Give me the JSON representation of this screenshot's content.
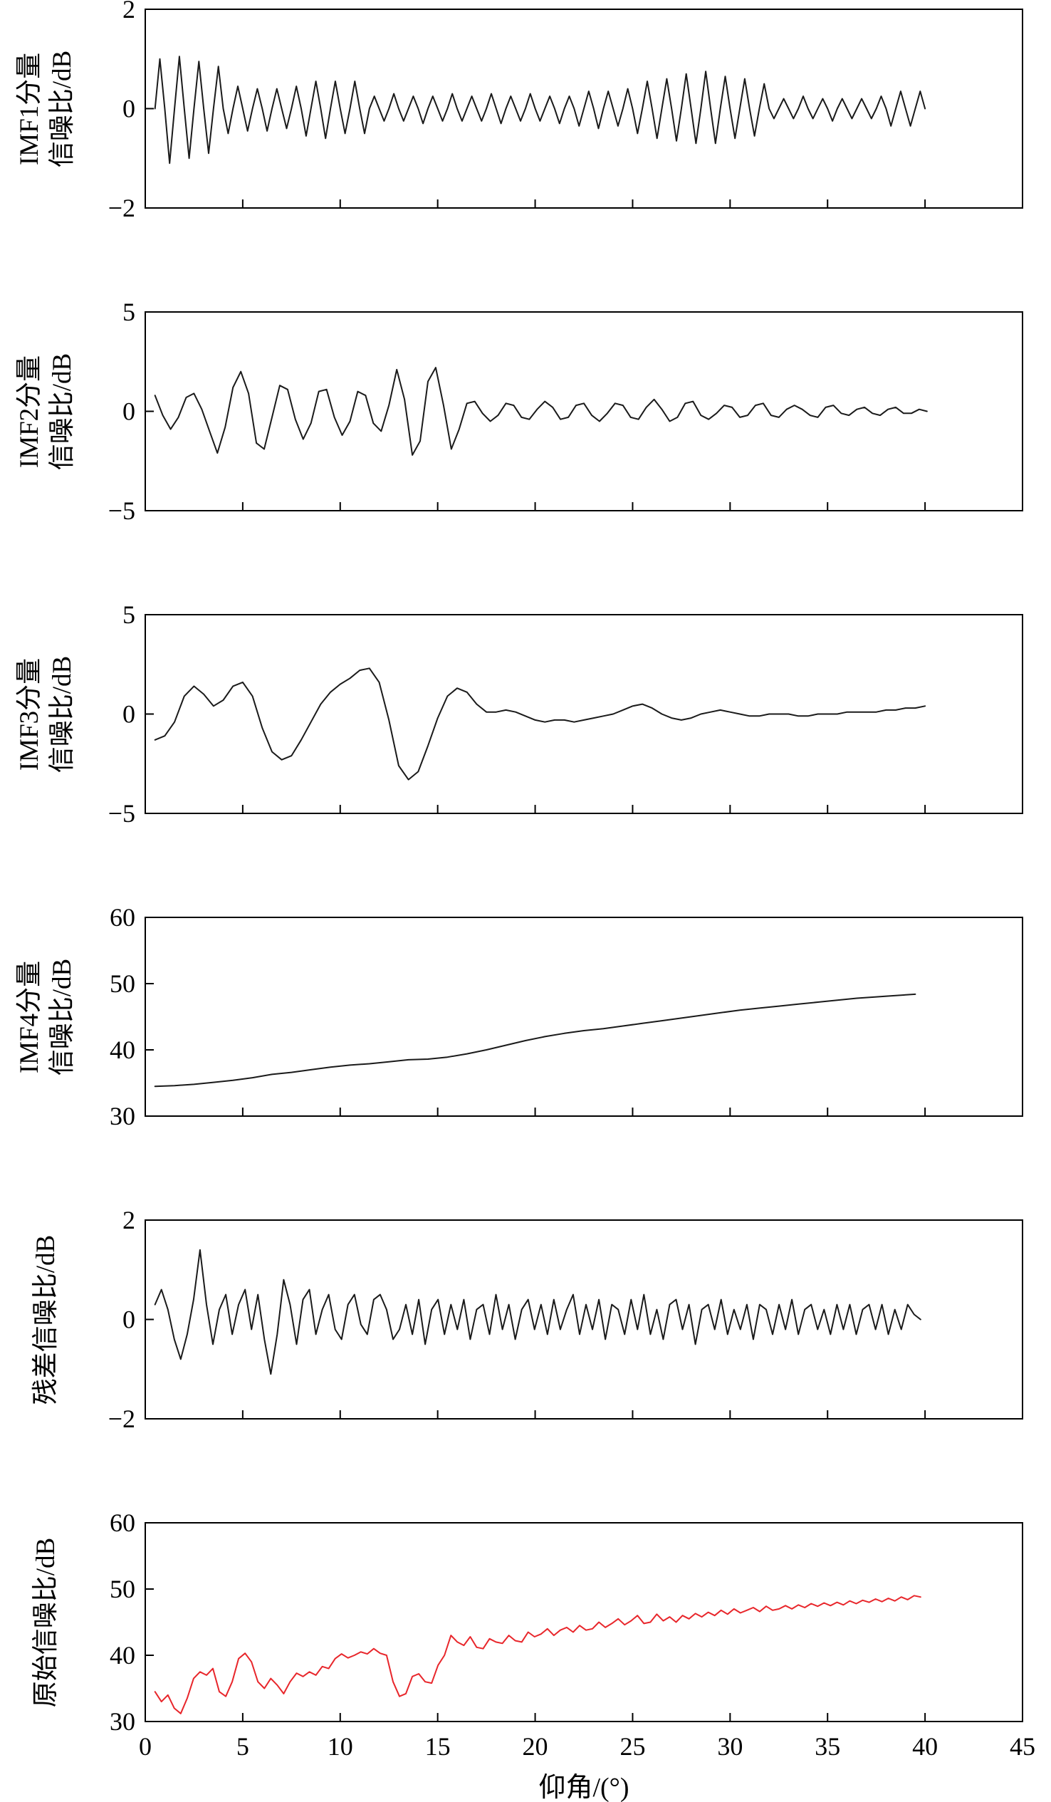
{
  "xlabel": "仰角/(°)",
  "x_ticks": [
    0,
    5,
    10,
    15,
    20,
    25,
    30,
    35,
    40,
    45
  ],
  "colors": {
    "axis": "#000000",
    "black_series": "#1a1a1a",
    "red_series": "#e8262b"
  },
  "chart_data": [
    {
      "type": "line",
      "id": "imf1",
      "ylabel_lines": [
        "IMF1分量",
        "信噪比/dB"
      ],
      "xlim": [
        0,
        45
      ],
      "ylim": [
        -2,
        2
      ],
      "yticks": [
        -2,
        0,
        2
      ],
      "color": "#1a1a1a",
      "x_start": 0.5,
      "x_step": 0.25,
      "values": [
        0,
        1.0,
        0,
        -1.1,
        0,
        1.05,
        0,
        -1.0,
        0,
        0.95,
        0,
        -0.9,
        0,
        0.85,
        0,
        -0.5,
        0,
        0.45,
        0,
        -0.45,
        0,
        0.4,
        0,
        -0.45,
        0,
        0.4,
        0,
        -0.4,
        0,
        0.45,
        0,
        -0.55,
        0,
        0.55,
        0,
        -0.6,
        0,
        0.55,
        0,
        -0.5,
        0,
        0.55,
        0,
        -0.5,
        0,
        0.25,
        0,
        -0.25,
        0,
        0.3,
        0,
        -0.25,
        0,
        0.25,
        0,
        -0.3,
        0,
        0.25,
        0,
        -0.25,
        0,
        0.3,
        0,
        -0.25,
        0,
        0.25,
        0,
        -0.25,
        0,
        0.3,
        0,
        -0.3,
        0,
        0.25,
        0,
        -0.25,
        0,
        0.3,
        0,
        -0.25,
        0,
        0.25,
        0,
        -0.3,
        0,
        0.25,
        0,
        -0.35,
        0,
        0.35,
        0,
        -0.4,
        0,
        0.35,
        0,
        -0.35,
        0,
        0.4,
        0,
        -0.5,
        0,
        0.55,
        0,
        -0.6,
        0,
        0.6,
        0,
        -0.65,
        0,
        0.7,
        0,
        -0.7,
        0,
        0.75,
        0,
        -0.7,
        0,
        0.65,
        0,
        -0.6,
        0,
        0.6,
        0,
        -0.55,
        0,
        0.5,
        0,
        -0.2,
        0,
        0.2,
        0,
        -0.2,
        0,
        0.25,
        0,
        -0.2,
        0,
        0.2,
        0,
        -0.25,
        0,
        0.2,
        0,
        -0.2,
        0,
        0.2,
        0,
        -0.2,
        0,
        0.25,
        0,
        -0.35,
        0,
        0.35,
        0,
        -0.35,
        0,
        0.35,
        0
      ]
    },
    {
      "type": "line",
      "id": "imf2",
      "ylabel_lines": [
        "IMF2分量",
        "信噪比/dB"
      ],
      "xlim": [
        0,
        45
      ],
      "ylim": [
        -5,
        5
      ],
      "yticks": [
        -5,
        0,
        5
      ],
      "color": "#1a1a1a",
      "x_start": 0.5,
      "x_step": 0.4,
      "values": [
        0.8,
        -0.2,
        -0.9,
        -0.3,
        0.7,
        0.9,
        0.1,
        -1.0,
        -2.1,
        -0.8,
        1.2,
        2.0,
        0.9,
        -1.6,
        -1.9,
        -0.3,
        1.3,
        1.1,
        -0.4,
        -1.4,
        -0.6,
        1.0,
        1.1,
        -0.3,
        -1.2,
        -0.5,
        1.0,
        0.8,
        -0.6,
        -1.0,
        0.3,
        2.1,
        0.6,
        -2.2,
        -1.5,
        1.5,
        2.2,
        0.3,
        -1.9,
        -0.9,
        0.4,
        0.5,
        -0.1,
        -0.5,
        -0.2,
        0.4,
        0.3,
        -0.3,
        -0.4,
        0.1,
        0.5,
        0.2,
        -0.4,
        -0.3,
        0.3,
        0.4,
        -0.2,
        -0.5,
        -0.1,
        0.4,
        0.3,
        -0.3,
        -0.4,
        0.2,
        0.6,
        0.1,
        -0.5,
        -0.3,
        0.4,
        0.5,
        -0.2,
        -0.4,
        -0.1,
        0.3,
        0.2,
        -0.3,
        -0.2,
        0.3,
        0.4,
        -0.2,
        -0.3,
        0.1,
        0.3,
        0.1,
        -0.2,
        -0.3,
        0.2,
        0.3,
        -0.1,
        -0.2,
        0.1,
        0.2,
        -0.1,
        -0.2,
        0.1,
        0.2,
        -0.1,
        -0.1,
        0.1,
        0.0
      ]
    },
    {
      "type": "line",
      "id": "imf3",
      "ylabel_lines": [
        "IMF3分量",
        "信噪比/dB"
      ],
      "xlim": [
        0,
        45
      ],
      "ylim": [
        -5,
        5
      ],
      "yticks": [
        -5,
        0,
        5
      ],
      "color": "#1a1a1a",
      "x_start": 0.5,
      "x_step": 0.5,
      "values": [
        -1.3,
        -1.1,
        -0.4,
        0.9,
        1.4,
        1.0,
        0.4,
        0.7,
        1.4,
        1.6,
        0.9,
        -0.7,
        -1.9,
        -2.3,
        -2.1,
        -1.3,
        -0.4,
        0.5,
        1.1,
        1.5,
        1.8,
        2.2,
        2.3,
        1.6,
        -0.3,
        -2.6,
        -3.3,
        -2.9,
        -1.6,
        -0.2,
        0.9,
        1.3,
        1.1,
        0.5,
        0.1,
        0.1,
        0.2,
        0.1,
        -0.1,
        -0.3,
        -0.4,
        -0.3,
        -0.3,
        -0.4,
        -0.3,
        -0.2,
        -0.1,
        0.0,
        0.2,
        0.4,
        0.5,
        0.3,
        0.0,
        -0.2,
        -0.3,
        -0.2,
        0.0,
        0.1,
        0.2,
        0.1,
        0.0,
        -0.1,
        -0.1,
        0.0,
        0.0,
        0.0,
        -0.1,
        -0.1,
        0.0,
        0.0,
        0.0,
        0.1,
        0.1,
        0.1,
        0.1,
        0.2,
        0.2,
        0.3,
        0.3,
        0.4
      ]
    },
    {
      "type": "line",
      "id": "imf4",
      "ylabel_lines": [
        "IMF4分量",
        "信噪比/dB"
      ],
      "xlim": [
        0,
        45
      ],
      "ylim": [
        30,
        60
      ],
      "yticks": [
        30,
        40,
        50,
        60
      ],
      "color": "#1a1a1a",
      "x_start": 0.5,
      "x_step": 1.0,
      "values": [
        34.5,
        34.6,
        34.8,
        35.1,
        35.4,
        35.8,
        36.3,
        36.6,
        37.0,
        37.4,
        37.7,
        37.9,
        38.2,
        38.5,
        38.6,
        38.9,
        39.4,
        40.0,
        40.7,
        41.4,
        42.0,
        42.5,
        42.9,
        43.2,
        43.6,
        44.0,
        44.4,
        44.8,
        45.2,
        45.6,
        46.0,
        46.3,
        46.6,
        46.9,
        47.2,
        47.5,
        47.8,
        48.0,
        48.2,
        48.4
      ]
    },
    {
      "type": "line",
      "id": "residual",
      "ylabel_lines": [
        "残差信噪比/dB"
      ],
      "xlim": [
        0,
        45
      ],
      "ylim": [
        -2,
        2
      ],
      "yticks": [
        -2,
        0,
        2
      ],
      "color": "#1a1a1a",
      "x_start": 0.5,
      "x_step": 0.33,
      "values": [
        0.3,
        0.6,
        0.2,
        -0.4,
        -0.8,
        -0.3,
        0.4,
        1.4,
        0.3,
        -0.5,
        0.2,
        0.5,
        -0.3,
        0.3,
        0.6,
        -0.2,
        0.5,
        -0.4,
        -1.1,
        -0.3,
        0.8,
        0.3,
        -0.5,
        0.4,
        0.6,
        -0.3,
        0.2,
        0.5,
        -0.2,
        -0.4,
        0.3,
        0.5,
        -0.1,
        -0.3,
        0.4,
        0.5,
        0.2,
        -0.4,
        -0.2,
        0.3,
        -0.3,
        0.4,
        -0.5,
        0.2,
        0.4,
        -0.3,
        0.3,
        -0.2,
        0.4,
        -0.4,
        0.2,
        0.3,
        -0.3,
        0.5,
        -0.2,
        0.3,
        -0.4,
        0.2,
        0.4,
        -0.2,
        0.3,
        -0.3,
        0.4,
        -0.2,
        0.2,
        0.5,
        -0.3,
        0.3,
        -0.2,
        0.4,
        -0.4,
        0.3,
        0.2,
        -0.3,
        0.4,
        -0.2,
        0.5,
        -0.3,
        0.2,
        -0.4,
        0.3,
        0.4,
        -0.2,
        0.3,
        -0.5,
        0.2,
        0.3,
        -0.2,
        0.4,
        -0.3,
        0.2,
        -0.2,
        0.3,
        -0.4,
        0.3,
        0.2,
        -0.3,
        0.3,
        -0.2,
        0.4,
        -0.3,
        0.2,
        0.3,
        -0.2,
        0.2,
        -0.3,
        0.3,
        -0.2,
        0.3,
        -0.3,
        0.2,
        0.3,
        -0.2,
        0.3,
        -0.3,
        0.2,
        -0.2,
        0.3,
        0.1,
        0.0
      ]
    },
    {
      "type": "line",
      "id": "original",
      "ylabel_lines": [
        "原始信噪比/dB"
      ],
      "xlim": [
        0,
        45
      ],
      "ylim": [
        30,
        60
      ],
      "yticks": [
        30,
        40,
        50,
        60
      ],
      "color": "#e8262b",
      "x_start": 0.5,
      "x_step": 0.33,
      "values": [
        34.5,
        33.0,
        34.0,
        32.0,
        31.2,
        33.5,
        36.5,
        37.5,
        37.0,
        38.0,
        34.5,
        33.8,
        36.0,
        39.5,
        40.3,
        39.0,
        36.0,
        35.0,
        36.5,
        35.5,
        34.2,
        36.0,
        37.3,
        36.8,
        37.5,
        37.0,
        38.3,
        38.0,
        39.5,
        40.2,
        39.6,
        40.0,
        40.5,
        40.2,
        41.0,
        40.3,
        40.0,
        36.0,
        33.8,
        34.2,
        36.8,
        37.2,
        36.0,
        35.8,
        38.5,
        40.0,
        43.0,
        42.0,
        41.5,
        42.8,
        41.2,
        41.0,
        42.5,
        42.0,
        41.8,
        43.0,
        42.2,
        42.0,
        43.5,
        42.8,
        43.2,
        44.0,
        43.0,
        43.8,
        44.2,
        43.5,
        44.5,
        43.8,
        44.0,
        45.0,
        44.2,
        44.8,
        45.5,
        44.6,
        45.2,
        46.0,
        44.8,
        45.0,
        46.2,
        45.2,
        45.8,
        45.0,
        46.0,
        45.5,
        46.3,
        45.8,
        46.5,
        46.0,
        46.8,
        46.2,
        47.0,
        46.4,
        46.8,
        47.2,
        46.6,
        47.4,
        46.8,
        47.0,
        47.5,
        47.0,
        47.6,
        47.2,
        47.8,
        47.4,
        47.9,
        47.5,
        48.0,
        47.6,
        48.2,
        47.8,
        48.3,
        48.0,
        48.5,
        48.1,
        48.6,
        48.2,
        48.8,
        48.4,
        49.0,
        48.8
      ]
    }
  ]
}
